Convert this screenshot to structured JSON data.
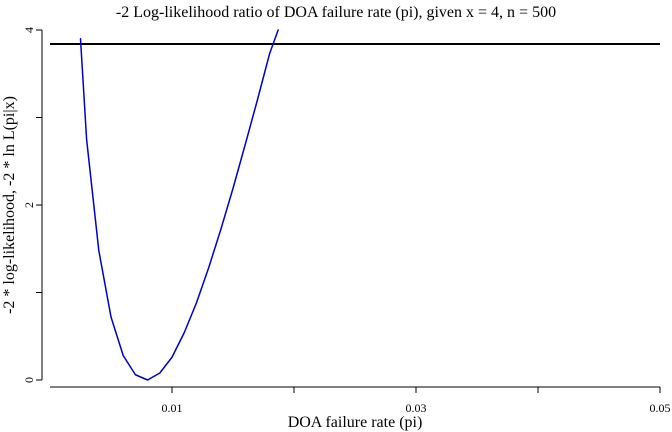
{
  "chart_data": {
    "type": "line",
    "title": "-2 Log-likelihood ratio of DOA failure rate (pi), given x = 4, n = 500",
    "xlabel": "DOA failure rate (pi)",
    "ylabel": "-2 * log-likelihood, -2 * ln L(pi|x)",
    "xlim": [
      0,
      0.05
    ],
    "ylim": [
      0,
      4
    ],
    "x_ticks": [
      0.01,
      0.02,
      0.03,
      0.04,
      0.05
    ],
    "x_tick_labels": [
      "0.01",
      "",
      "0.03",
      "",
      "0.05"
    ],
    "y_ticks": [
      0,
      1,
      2,
      3,
      4
    ],
    "y_tick_labels": [
      "0",
      "",
      "2",
      "",
      "4"
    ],
    "reference_line": {
      "y": 3.84
    },
    "series": [
      {
        "color": "#0000cc",
        "x": [
          0.0025,
          0.003,
          0.004,
          0.005,
          0.006,
          0.007,
          0.008,
          0.009,
          0.01,
          0.011,
          0.012,
          0.013,
          0.014,
          0.015,
          0.016,
          0.017,
          0.018,
          0.0187
        ],
        "y": [
          3.9,
          2.75,
          1.48,
          0.72,
          0.28,
          0.06,
          0.0,
          0.08,
          0.26,
          0.54,
          0.88,
          1.28,
          1.72,
          2.19,
          2.69,
          3.2,
          3.73,
          4.0
        ]
      }
    ]
  }
}
